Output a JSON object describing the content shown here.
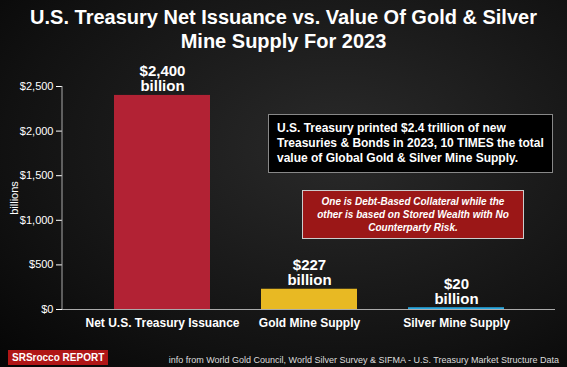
{
  "chart_data": {
    "type": "bar",
    "title": "U.S. Treasury Net Issuance vs. Value Of Gold & Silver Mine Supply For 2023",
    "categories": [
      "Net U.S. Treasury Issuance",
      "Gold Mine Supply",
      "Silver Mine Supply"
    ],
    "values": [
      2400,
      227,
      20
    ],
    "value_labels": [
      "$2,400\nbillion",
      "$227\nbillion",
      "$20\nbillion"
    ],
    "colors": [
      "#b22234",
      "#e8b923",
      "#29a8e0"
    ],
    "y_label": "billions",
    "ylim": [
      0,
      2500
    ],
    "yticks": [
      {
        "value": 0,
        "label": "$0"
      },
      {
        "value": 500,
        "label": "$500"
      },
      {
        "value": 1000,
        "label": "$1,000"
      },
      {
        "value": 1500,
        "label": "$1,500"
      },
      {
        "value": 2000,
        "label": "$2,000"
      },
      {
        "value": 2500,
        "label": "$2,500"
      }
    ],
    "grid": false,
    "data_labels": true,
    "annotations": [
      "U.S. Treasury printed $2.4 trillion of new Treasuries & Bonds in 2023, 10 TIMES the total value of Global Gold & Silver Mine Supply.",
      "One is Debt-Based Collateral while the other is based on Stored Wealth with No Counterparty Risk."
    ],
    "source": "info from World Gold Council, World Silver Survey & SIFMA - U.S. Treasury Market Structure Data",
    "logo": "SRSrocco REPORT"
  }
}
